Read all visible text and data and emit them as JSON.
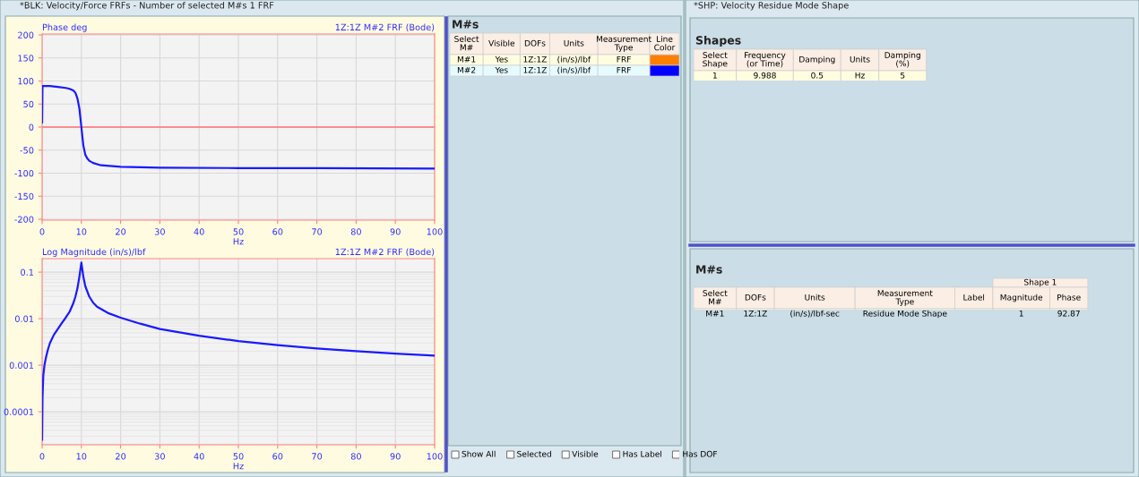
{
  "chart_data": [
    {
      "type": "line",
      "ylabel": "Phase deg",
      "subtitle": "1Z:1Z M#2 FRF (Bode)",
      "xlabel": "Hz",
      "xlim": [
        0,
        100
      ],
      "ylim": [
        -202,
        202
      ],
      "xticks": [
        0,
        10,
        20,
        30,
        40,
        50,
        60,
        70,
        80,
        90,
        100
      ],
      "yticks": [
        -200,
        -150,
        -100,
        -50,
        0,
        50,
        100,
        150,
        200
      ],
      "grid": true,
      "ref_lines": [
        {
          "axis": "y",
          "value": 0,
          "color": "#ff7070"
        }
      ],
      "series": [
        {
          "color": "#1a1aff",
          "x": [
            0,
            0.1,
            2,
            4,
            6,
            7,
            8,
            8.5,
            9,
            9.5,
            10,
            10.5,
            11,
            11.5,
            12,
            13,
            15,
            20,
            30,
            50,
            70,
            100
          ],
          "values": [
            10,
            89,
            89,
            87,
            85,
            83,
            79,
            74,
            62,
            40,
            0,
            -40,
            -60,
            -68,
            -73,
            -78,
            -83,
            -86,
            -88,
            -89,
            -89,
            -90
          ]
        }
      ]
    },
    {
      "type": "line",
      "ylabel": "Log Magnitude (in/s)/lbf",
      "subtitle": "1Z:1Z M#2 FRF (Bode)",
      "xlabel": "Hz",
      "log": "y",
      "xlim": [
        0,
        100
      ],
      "ylim": [
        1.95e-05,
        0.195
      ],
      "xticks": [
        0,
        10,
        20,
        30,
        40,
        50,
        60,
        70,
        80,
        90,
        100
      ],
      "yticks": [
        0.0001,
        0.001,
        0.01,
        0.1
      ],
      "grid": true,
      "series": [
        {
          "color": "#1a1aff",
          "x": [
            0,
            0.1,
            0.3,
            0.6,
            1,
            1.5,
            2,
            3,
            4,
            5,
            6,
            7,
            8,
            8.5,
            9,
            9.5,
            10,
            10.5,
            11,
            12,
            13,
            14,
            17,
            20,
            25,
            30,
            40,
            50,
            60,
            70,
            80,
            90,
            100
          ],
          "values": [
            2.5e-05,
            0.0002,
            0.0006,
            0.001,
            0.0015,
            0.0022,
            0.003,
            0.0045,
            0.006,
            0.008,
            0.0105,
            0.014,
            0.022,
            0.03,
            0.045,
            0.08,
            0.16,
            0.08,
            0.05,
            0.03,
            0.022,
            0.018,
            0.013,
            0.0105,
            0.0078,
            0.006,
            0.0043,
            0.0033,
            0.0027,
            0.0023,
            0.002,
            0.00178,
            0.0016
          ]
        }
      ]
    },
    {
      "type": "other",
      "title": "*BLK: Velocity/Force FRFs - Number of selected M#s 1 FRF"
    },
    {
      "type": "other",
      "title": "M#s",
      "categories": [
        "Select M#",
        "Visible",
        "DOFs",
        "Units",
        "Measurement Type",
        "Line Color"
      ],
      "annotations": [
        "M#1",
        "Yes",
        "1Z:1Z",
        "(in/s)/lbf",
        "FRF",
        null,
        "M#2",
        "Yes",
        "1Z:1Z",
        "(in/s)/lbf",
        "FRF",
        null
      ]
    },
    {
      "type": "other",
      "annotations": [
        "Show All",
        "Selected",
        "Visible",
        "Has Label",
        "Has DOF"
      ]
    },
    {
      "type": "other",
      "title": "*SHP: Velocity Residue Mode Shape"
    },
    {
      "type": "other",
      "title": "Shapes",
      "categories": [
        "Select Shape",
        "Frequency (or Time)",
        "Damping",
        "Units",
        "Damping (%)"
      ],
      "annotations": [
        "1",
        "9.988",
        "0.5",
        "Hz",
        "5"
      ]
    },
    {
      "type": "other",
      "title": "M#s",
      "subtitle": "Shape 1",
      "categories": [
        "Select M#",
        "DOFs",
        "Units",
        "Measurement Type",
        "Label",
        "Magnitude",
        "Phase"
      ],
      "annotations": [
        "M#1",
        "1Z:1Z",
        "(in/s)/lbf-sec",
        "Residue Mode Shape",
        null,
        "1",
        "92.87"
      ]
    }
  ]
}
